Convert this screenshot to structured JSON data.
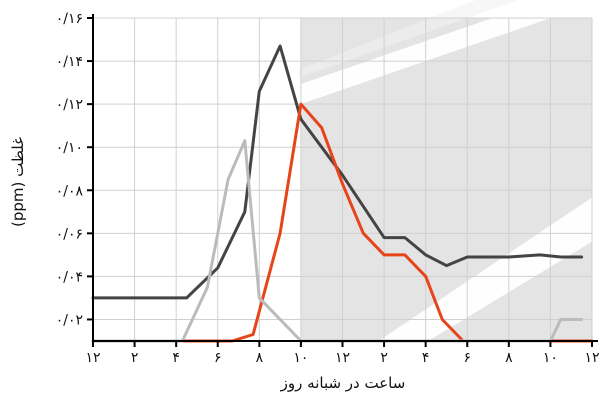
{
  "chart_data": {
    "type": "line",
    "title": "",
    "xlabel": "ساعت در شبانه روز",
    "ylabel": "غلظت (ppm)",
    "ylim": [
      0.01,
      0.16
    ],
    "grid": true,
    "x_ticks": [
      {
        "x": 0,
        "label": "۱۲"
      },
      {
        "x": 2,
        "label": "۲"
      },
      {
        "x": 4,
        "label": "۴"
      },
      {
        "x": 6,
        "label": "۶"
      },
      {
        "x": 8,
        "label": "۸"
      },
      {
        "x": 10,
        "label": "۱۰"
      },
      {
        "x": 12,
        "label": "۱۲"
      },
      {
        "x": 14,
        "label": "۲"
      },
      {
        "x": 16,
        "label": "۴"
      },
      {
        "x": 18,
        "label": "۶"
      },
      {
        "x": 20,
        "label": "۸"
      },
      {
        "x": 22,
        "label": "۱۰"
      },
      {
        "x": 24,
        "label": "۱۲"
      }
    ],
    "y_ticks": [
      {
        "y": 0.02,
        "label": "۰/۰۲"
      },
      {
        "y": 0.04,
        "label": "۰/۰۴"
      },
      {
        "y": 0.06,
        "label": "۰/۰۶"
      },
      {
        "y": 0.08,
        "label": "۰/۰۸"
      },
      {
        "y": 0.1,
        "label": "۰/۱۰"
      },
      {
        "y": 0.12,
        "label": "۰/۱۲"
      },
      {
        "y": 0.14,
        "label": "۰/۱۴"
      },
      {
        "y": 0.16,
        "label": "۰/۱۶"
      }
    ],
    "series": [
      {
        "color": "#444444",
        "points": [
          [
            0,
            0.03
          ],
          [
            4.5,
            0.03
          ],
          [
            6,
            0.044
          ],
          [
            7.3,
            0.07
          ],
          [
            8,
            0.126
          ],
          [
            9,
            0.147
          ],
          [
            10,
            0.113
          ],
          [
            11,
            0.1
          ],
          [
            12,
            0.087
          ],
          [
            14,
            0.058
          ],
          [
            15,
            0.058
          ],
          [
            16,
            0.05
          ],
          [
            17,
            0.045
          ],
          [
            18,
            0.049
          ],
          [
            20,
            0.049
          ],
          [
            21.5,
            0.05
          ],
          [
            22.5,
            0.049
          ],
          [
            23.5,
            0.049
          ]
        ]
      },
      {
        "color": "#e8441c",
        "points": [
          [
            0,
            0.01
          ],
          [
            6.7,
            0.01
          ],
          [
            7.7,
            0.013
          ],
          [
            9,
            0.06
          ],
          [
            10,
            0.12
          ],
          [
            11,
            0.109
          ],
          [
            12,
            0.083
          ],
          [
            13,
            0.06
          ],
          [
            14,
            0.05
          ],
          [
            15,
            0.05
          ],
          [
            16,
            0.04
          ],
          [
            16.8,
            0.02
          ],
          [
            17.8,
            0.01
          ],
          [
            24,
            0.01
          ]
        ]
      },
      {
        "color": "#bbbbbb",
        "points": [
          [
            0,
            0.01
          ],
          [
            4.3,
            0.01
          ],
          [
            5.5,
            0.035
          ],
          [
            6.5,
            0.085
          ],
          [
            7.3,
            0.103
          ],
          [
            8,
            0.03
          ],
          [
            8.5,
            0.025
          ],
          [
            10,
            0.01
          ],
          [
            22,
            0.01
          ],
          [
            22.5,
            0.02
          ],
          [
            23.5,
            0.02
          ]
        ]
      }
    ],
    "shaded_region": {
      "x_start": 10,
      "x_end": 24,
      "color": "#e4e4e4"
    }
  }
}
